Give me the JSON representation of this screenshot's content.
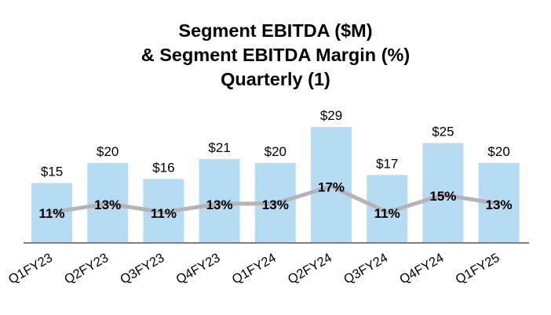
{
  "chart_data": {
    "type": "bar",
    "title": [
      "Segment EBITDA ($M)",
      "& Segment EBITDA Margin (%)",
      "Quarterly (1)"
    ],
    "xlabel": "",
    "ylabel": "",
    "categories": [
      "Q1FY23",
      "Q2FY23",
      "Q3FY23",
      "Q4FY23",
      "Q1FY24",
      "Q2FY24",
      "Q3FY24",
      "Q4FY24",
      "Q1FY25"
    ],
    "series": [
      {
        "name": "Segment EBITDA ($M)",
        "type": "bar",
        "values": [
          15,
          20,
          16,
          21,
          20,
          29,
          17,
          25,
          20
        ],
        "labels": [
          "$15",
          "$20",
          "$16",
          "$21",
          "$20",
          "$29",
          "$17",
          "$25",
          "$20"
        ],
        "color": "#b5dcf3"
      },
      {
        "name": "Segment EBITDA Margin (%)",
        "type": "line",
        "values": [
          11,
          13,
          11,
          13,
          13,
          17,
          11,
          15,
          13
        ],
        "labels": [
          "11%",
          "13%",
          "11%",
          "13%",
          "13%",
          "17%",
          "11%",
          "15%",
          "13%"
        ],
        "color": "#b4b4b4"
      }
    ],
    "ylim": [
      0,
      29
    ],
    "grid": false,
    "legend": "none"
  }
}
